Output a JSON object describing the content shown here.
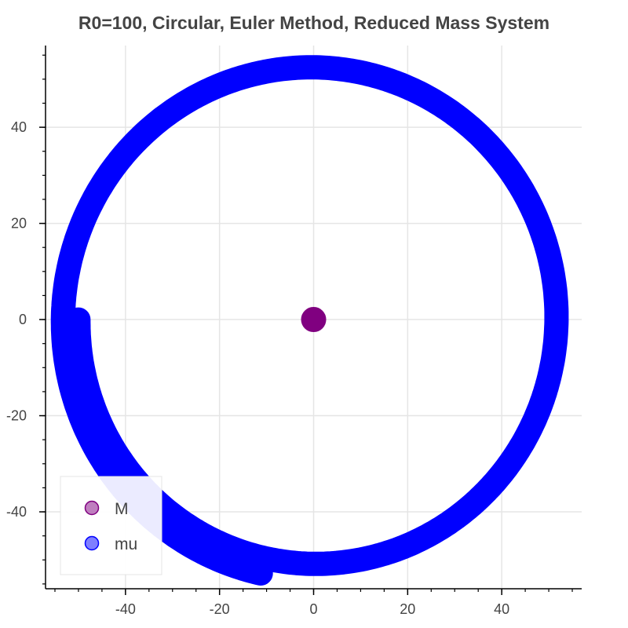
{
  "chart_data": {
    "type": "scatter",
    "title": "R0=100, Circular, Euler Method, Reduced Mass System",
    "xlabel": "",
    "ylabel": "",
    "xlim": [
      -57,
      57
    ],
    "ylim": [
      -56,
      57
    ],
    "x_ticks": [
      -40,
      -20,
      0,
      20,
      40
    ],
    "y_ticks": [
      -40,
      -20,
      0,
      20,
      40
    ],
    "grid": true,
    "legend_position": "bottom-left",
    "series": [
      {
        "name": "M",
        "color": "#800080",
        "points": [
          [
            0,
            0
          ]
        ]
      },
      {
        "name": "mu",
        "color": "#0000ff",
        "trajectory": {
          "start_radius": 50,
          "start_angle_deg": 180,
          "end_radius": 54,
          "end_angle_deg": 258,
          "turns": 1
        }
      }
    ]
  }
}
